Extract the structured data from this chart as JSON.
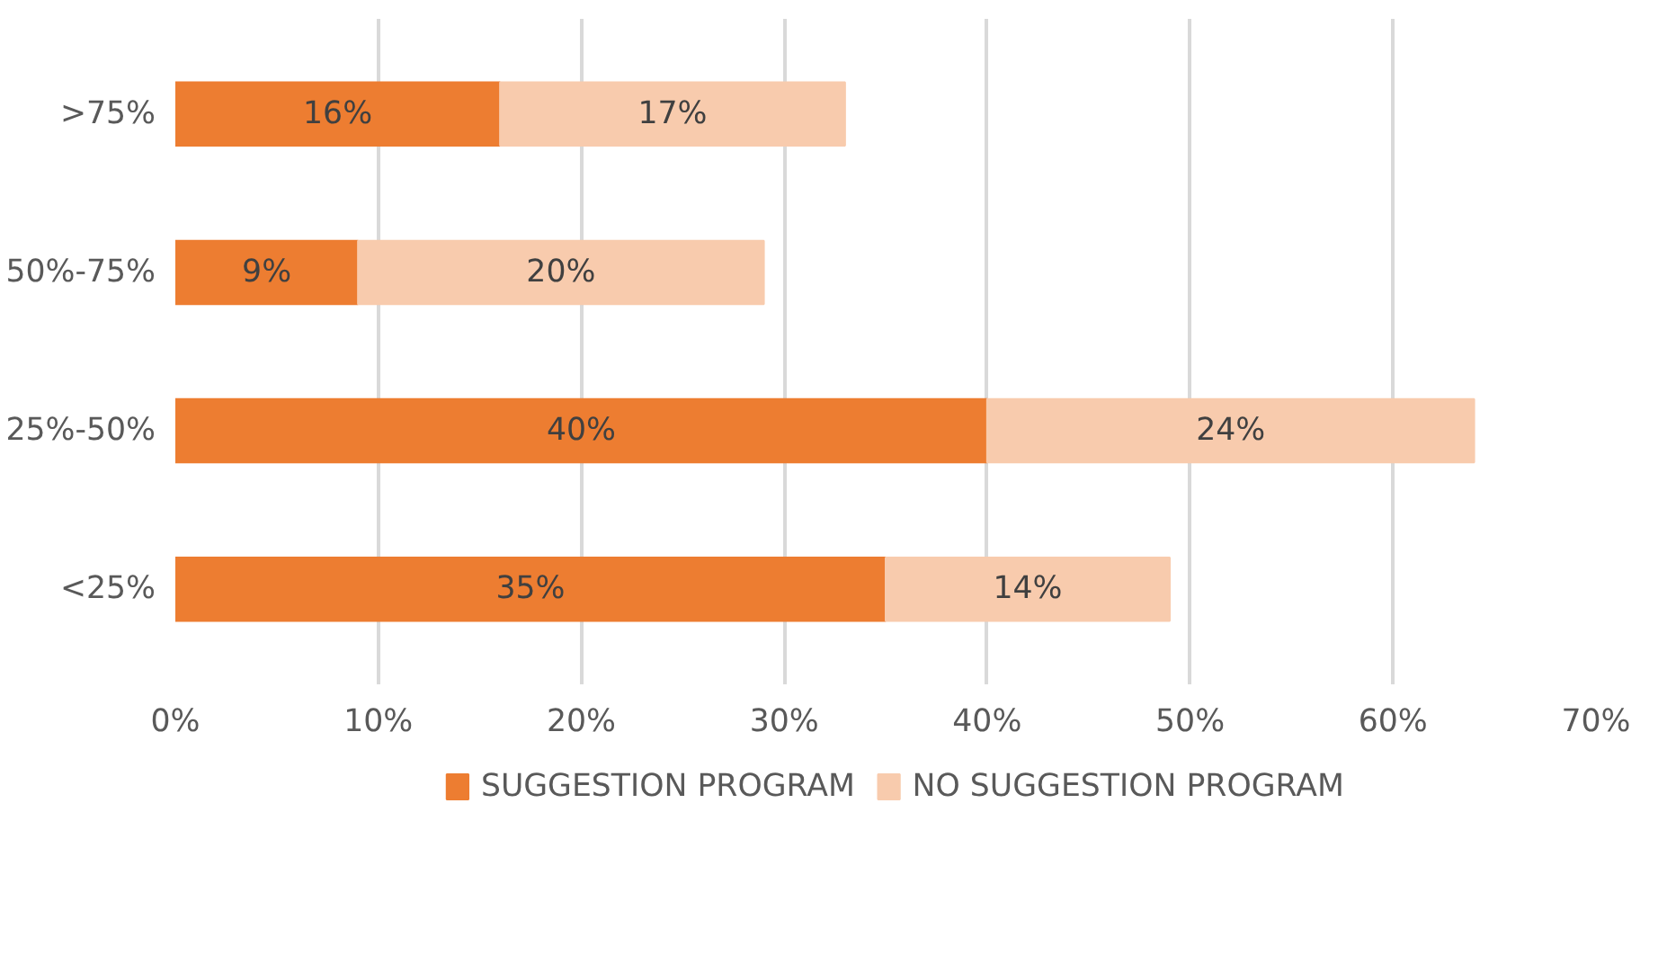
{
  "chart_data": {
    "type": "bar",
    "orientation": "horizontal",
    "stacked": true,
    "categories": [
      ">75%",
      "50%-75%",
      "25%-50%",
      "<25%"
    ],
    "series": [
      {
        "name": "SUGGESTION PROGRAM",
        "color": "#ed7d31",
        "values": [
          16,
          9,
          40,
          35
        ],
        "value_labels": [
          "16%",
          "9%",
          "40%",
          "35%"
        ]
      },
      {
        "name": "NO SUGGESTION PROGRAM",
        "color": "#f8cbad",
        "values": [
          17,
          20,
          24,
          14
        ],
        "value_labels": [
          "17%",
          "20%",
          "24%",
          "14%"
        ]
      }
    ],
    "xlim": [
      0,
      70
    ],
    "xticks": [
      {
        "value": 0,
        "label": "0%"
      },
      {
        "value": 10,
        "label": "10%"
      },
      {
        "value": 20,
        "label": "20%"
      },
      {
        "value": 30,
        "label": "30%"
      },
      {
        "value": 40,
        "label": "40%"
      },
      {
        "value": 50,
        "label": "50%"
      },
      {
        "value": 60,
        "label": "60%"
      },
      {
        "value": 70,
        "label": "70%"
      }
    ],
    "grid": "x",
    "legend": "bottom"
  }
}
